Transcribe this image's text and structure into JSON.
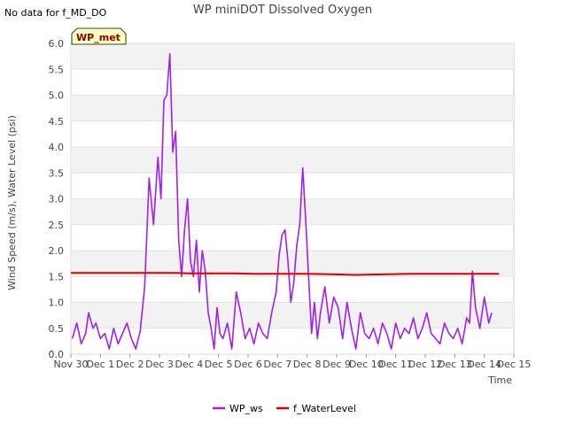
{
  "header": {
    "no_data_note": "No data for f_MD_DO",
    "title": "WP miniDOT Dissolved Oxygen",
    "badge": "WP_met"
  },
  "chart_data": {
    "type": "line",
    "title": "WP miniDOT Dissolved Oxygen",
    "xlabel": "Time",
    "ylabel": "Wind Speed (m/s), Water Level (psi)",
    "xlim": [
      0,
      15
    ],
    "ylim": [
      0,
      6
    ],
    "x_ticks": [
      {
        "pos": 0,
        "label": "Nov 30"
      },
      {
        "pos": 1,
        "label": "Dec 1"
      },
      {
        "pos": 2,
        "label": "Dec 2"
      },
      {
        "pos": 3,
        "label": "Dec 3"
      },
      {
        "pos": 4,
        "label": "Dec 4"
      },
      {
        "pos": 5,
        "label": "Dec 5"
      },
      {
        "pos": 6,
        "label": "Dec 6"
      },
      {
        "pos": 7,
        "label": "Dec 7"
      },
      {
        "pos": 8,
        "label": "Dec 8"
      },
      {
        "pos": 9,
        "label": "Dec 9"
      },
      {
        "pos": 10,
        "label": "Dec 10"
      },
      {
        "pos": 11,
        "label": "Dec 11"
      },
      {
        "pos": 12,
        "label": "Dec 12"
      },
      {
        "pos": 13,
        "label": "Dec 13"
      },
      {
        "pos": 14,
        "label": "Dec 14"
      },
      {
        "pos": 15,
        "label": "Dec 15"
      }
    ],
    "y_ticks": [
      "0.0",
      "0.5",
      "1.0",
      "1.5",
      "2.0",
      "2.5",
      "3.0",
      "3.5",
      "4.0",
      "4.5",
      "5.0",
      "5.5",
      "6.0"
    ],
    "grid": "horizontal bands",
    "legend_position": "bottom-center",
    "series": [
      {
        "name": "WP_ws",
        "color": "#a020f0",
        "x": [
          0.05,
          0.2,
          0.35,
          0.5,
          0.6,
          0.75,
          0.85,
          1.0,
          1.15,
          1.3,
          1.45,
          1.6,
          1.75,
          1.9,
          2.05,
          2.2,
          2.35,
          2.5,
          2.65,
          2.8,
          2.95,
          3.05,
          3.15,
          3.25,
          3.35,
          3.45,
          3.55,
          3.65,
          3.75,
          3.85,
          3.95,
          4.05,
          4.15,
          4.25,
          4.35,
          4.45,
          4.55,
          4.65,
          4.75,
          4.85,
          4.95,
          5.05,
          5.15,
          5.3,
          5.45,
          5.6,
          5.75,
          5.9,
          6.05,
          6.2,
          6.35,
          6.5,
          6.65,
          6.8,
          6.95,
          7.05,
          7.15,
          7.25,
          7.35,
          7.45,
          7.55,
          7.65,
          7.75,
          7.85,
          7.95,
          8.05,
          8.15,
          8.25,
          8.35,
          8.45,
          8.6,
          8.75,
          8.9,
          9.05,
          9.2,
          9.35,
          9.5,
          9.65,
          9.8,
          9.95,
          10.1,
          10.25,
          10.4,
          10.55,
          10.7,
          10.85,
          11.0,
          11.15,
          11.3,
          11.45,
          11.6,
          11.75,
          11.9,
          12.05,
          12.2,
          12.35,
          12.5,
          12.65,
          12.8,
          12.95,
          13.1,
          13.25,
          13.4,
          13.5,
          13.6,
          13.7,
          13.85,
          14.0,
          14.15,
          14.25
        ],
        "values": [
          0.3,
          0.6,
          0.2,
          0.4,
          0.8,
          0.5,
          0.6,
          0.3,
          0.4,
          0.1,
          0.5,
          0.2,
          0.4,
          0.6,
          0.3,
          0.1,
          0.45,
          1.3,
          3.4,
          2.5,
          3.8,
          3.0,
          4.9,
          5.0,
          5.8,
          3.9,
          4.3,
          2.2,
          1.5,
          2.4,
          3.0,
          1.8,
          1.5,
          2.2,
          1.2,
          2.0,
          1.6,
          0.8,
          0.5,
          0.1,
          0.9,
          0.4,
          0.3,
          0.6,
          0.1,
          1.2,
          0.8,
          0.3,
          0.5,
          0.2,
          0.6,
          0.4,
          0.3,
          0.8,
          1.2,
          1.9,
          2.3,
          2.4,
          1.8,
          1.0,
          1.4,
          2.1,
          2.5,
          3.6,
          2.6,
          1.5,
          0.4,
          1.0,
          0.3,
          0.8,
          1.3,
          0.6,
          1.1,
          0.9,
          0.3,
          1.0,
          0.5,
          0.1,
          0.8,
          0.4,
          0.3,
          0.5,
          0.2,
          0.6,
          0.4,
          0.1,
          0.6,
          0.3,
          0.5,
          0.4,
          0.7,
          0.3,
          0.5,
          0.8,
          0.4,
          0.3,
          0.2,
          0.6,
          0.4,
          0.3,
          0.5,
          0.2,
          0.7,
          0.6,
          1.6,
          0.9,
          0.5,
          1.1,
          0.6,
          0.8
        ]
      },
      {
        "name": "f_WaterLevel",
        "color": "#dd0000",
        "x": [
          0,
          1,
          2,
          3,
          3.6,
          4,
          4.8,
          5.5,
          6.2,
          7,
          8,
          9,
          9.6,
          10.5,
          11.5,
          12.5,
          14.5
        ],
        "values": [
          1.57,
          1.57,
          1.57,
          1.57,
          1.57,
          1.56,
          1.56,
          1.56,
          1.55,
          1.55,
          1.55,
          1.54,
          1.53,
          1.54,
          1.55,
          1.55,
          1.55
        ]
      }
    ]
  }
}
